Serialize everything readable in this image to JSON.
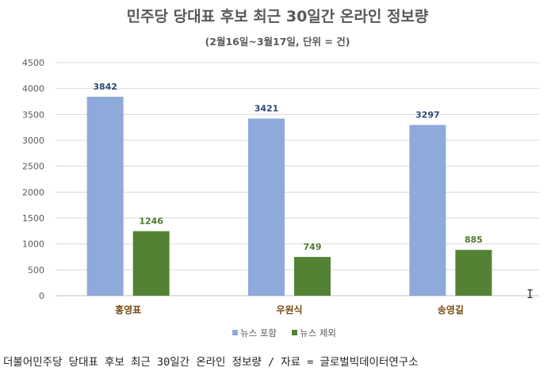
{
  "chart_data": {
    "type": "bar",
    "title": "민주당 당대표 후보 최근 30일간 온라인 정보량",
    "subtitle": "(2월16일~3월17일, 단위 = 건)",
    "categories": [
      "홍영표",
      "우원식",
      "송영길"
    ],
    "series": [
      {
        "name": "뉴스 포함",
        "values": [
          3842,
          3421,
          3297
        ],
        "color": "#8eaadb"
      },
      {
        "name": "뉴스 제외",
        "values": [
          1246,
          749,
          885
        ],
        "color": "#548235"
      }
    ],
    "ylim": [
      0,
      4500
    ],
    "yticks": [
      0,
      500,
      1000,
      1500,
      2000,
      2500,
      3000,
      3500,
      4000,
      4500
    ],
    "grid": true,
    "legend": "bottom"
  },
  "caption": "더불어민주당 당대표 후보 최근 30일간 온라인 정보량 / 자료 = 글로벌빅데이터연구소",
  "colors": {
    "category_label": "#7a4b12",
    "axis_text": "#595959",
    "gridline": "#d9d9d9"
  }
}
